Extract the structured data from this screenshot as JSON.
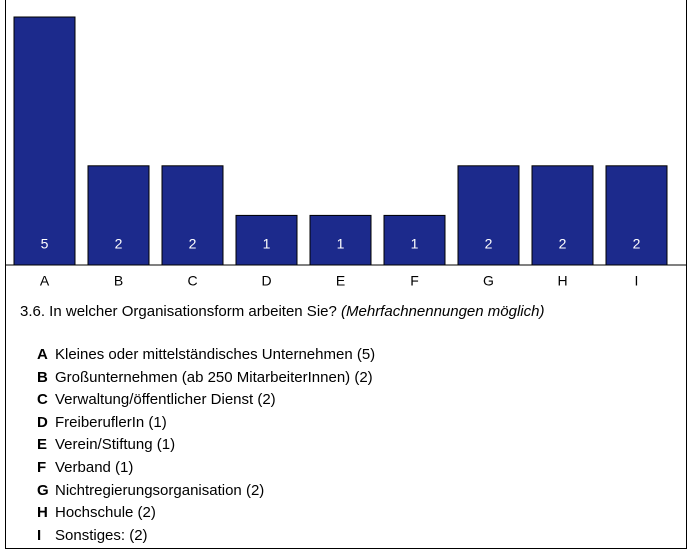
{
  "chart_data": {
    "type": "bar",
    "categories": [
      "A",
      "B",
      "C",
      "D",
      "E",
      "F",
      "G",
      "H",
      "I"
    ],
    "values": [
      5,
      2,
      2,
      1,
      1,
      1,
      2,
      2,
      2
    ],
    "color": "#1c2a8c",
    "ylim": [
      0,
      5
    ],
    "question": "3.6. In welcher Organisationsform arbeiten Sie?",
    "question_note": "(Mehrfachnennungen möglich)",
    "legend": [
      "Kleines oder mittelständisches Unternehmen (5)",
      "Großunternehmen (ab 250 MitarbeiterInnen) (2)",
      "Verwaltung/öffentlicher Dienst (2)",
      "FreiberuflerIn (1)",
      "Verein/Stiftung (1)",
      "Verband (1)",
      "Nichtregierungsorganisation (2)",
      "Hochschule (2)",
      "Sonstiges: (2)"
    ]
  }
}
